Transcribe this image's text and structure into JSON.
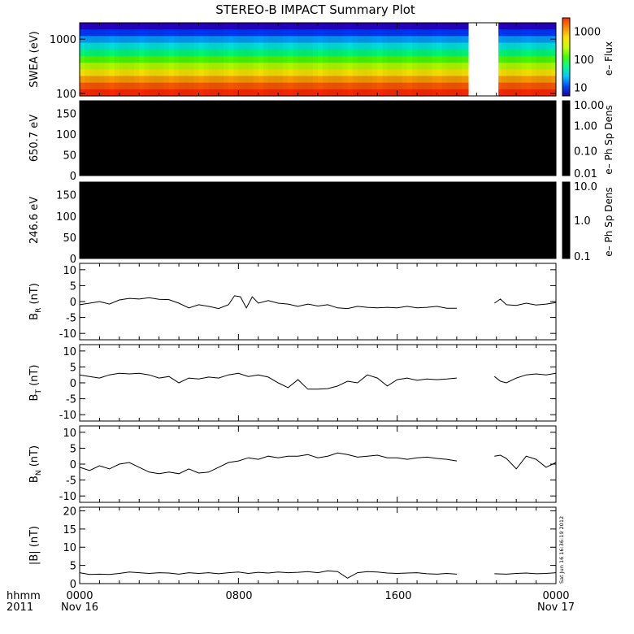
{
  "title": "STEREO-B IMPACT Summary Plot",
  "footer": {
    "left_top": "hhmm",
    "left_bottom": "2011",
    "time_labels": [
      "0000",
      "0800",
      "1600",
      "0000"
    ],
    "date_start": "Nov 16",
    "date_end": "Nov 17"
  },
  "timestamp": "Sat Jun 16 16:36:19 2012",
  "chart_data": [
    {
      "type": "heatmap",
      "name": "swea",
      "ylabel": "SWEA (eV)",
      "y_scale": "log",
      "ylim": [
        90,
        2000
      ],
      "y_ticks": [
        {
          "v": 1000,
          "label": "1000"
        },
        {
          "v": 100,
          "label": "100"
        }
      ],
      "colorbar": {
        "label": "e– Flux",
        "scale": "log",
        "range": [
          5,
          3000
        ],
        "ticks": [
          {
            "v": 1000,
            "label": "1000"
          },
          {
            "v": 100,
            "label": "100"
          },
          {
            "v": 10,
            "label": "10"
          }
        ],
        "colors": [
          "#1a00a0",
          "#0048ff",
          "#00c8ff",
          "#00ff90",
          "#40ff00",
          "#c8ff00",
          "#ffe000",
          "#ff8c00",
          "#ff3000"
        ]
      },
      "data_gap_hours": [
        19.6,
        21.1
      ],
      "rows_top_to_bottom": [
        "#2a00c8",
        "#0038ff",
        "#00a0ff",
        "#00e8e0",
        "#00ff78",
        "#50ff00",
        "#b8ff00",
        "#ffe600",
        "#ffa000",
        "#ff5a00",
        "#ff2c00"
      ]
    },
    {
      "type": "heatmap",
      "name": "pad-650",
      "ylabel": "650.7 eV",
      "ylim": [
        0,
        180
      ],
      "y_ticks": [
        0,
        50,
        100,
        150
      ],
      "fill": "#000000",
      "colorbar": {
        "label": "e– Ph Sp Dens",
        "scale": "log",
        "range": [
          0.01,
          10
        ],
        "ticks": [
          {
            "v": 10,
            "label": "10.00"
          },
          {
            "v": 1,
            "label": "1.00"
          },
          {
            "v": 0.1,
            "label": "0.10"
          },
          {
            "v": 0.01,
            "label": "0.01"
          }
        ],
        "colors": [
          "#000000"
        ]
      }
    },
    {
      "type": "heatmap",
      "name": "pad-246",
      "ylabel": "246.6 eV",
      "ylim": [
        0,
        180
      ],
      "y_ticks": [
        0,
        50,
        100,
        150
      ],
      "fill": "#000000",
      "colorbar": {
        "label": "e– Ph Sp Dens",
        "scale": "log",
        "range": [
          0.1,
          10
        ],
        "ticks": [
          {
            "v": 10,
            "label": "10.0"
          },
          {
            "v": 1,
            "label": "1.0"
          },
          {
            "v": 0.1,
            "label": "0.1"
          }
        ],
        "colors": [
          "#000000"
        ]
      }
    },
    {
      "type": "line",
      "name": "br",
      "ylabel": "B",
      "ylabel_sub": "R",
      "ylabel_unit": " (nT)",
      "ylim": [
        -12,
        12
      ],
      "y_ticks": [
        -10,
        -5,
        0,
        5,
        10
      ],
      "series": [
        {
          "x": [
            0,
            0.5,
            1,
            1.5,
            2,
            2.5,
            3,
            3.5,
            4,
            4.5,
            5,
            5.5,
            6,
            6.5,
            7,
            7.5,
            7.8,
            8.1,
            8.4,
            8.7,
            9,
            9.5,
            10,
            10.5,
            11,
            11.5,
            12,
            12.5,
            13,
            13.5,
            14,
            14.5,
            15,
            15.5,
            16,
            16.5,
            17,
            17.5,
            18,
            18.5,
            19,
            null,
            20.9,
            21.2,
            21.5,
            22,
            22.5,
            23,
            23.5,
            24
          ],
          "y": [
            -1,
            -0.5,
            0,
            -0.8,
            0.5,
            1,
            0.8,
            1.2,
            0.7,
            0.6,
            -0.5,
            -2,
            -1,
            -1.5,
            -2.2,
            -1,
            1.8,
            1.5,
            -2,
            1.5,
            -0.5,
            0.3,
            -0.5,
            -0.8,
            -1.5,
            -0.8,
            -1.4,
            -1,
            -2,
            -2.2,
            -1.5,
            -1.8,
            -2,
            -1.8,
            -2,
            -1.5,
            -2,
            -1.8,
            -1.5,
            -2.1,
            -2.1,
            null,
            -0.5,
            0.8,
            -1,
            -1.2,
            -0.5,
            -1.1,
            -0.8,
            -0.3
          ]
        }
      ]
    },
    {
      "type": "line",
      "name": "bt",
      "ylabel": "B",
      "ylabel_sub": "T",
      "ylabel_unit": " (nT)",
      "ylim": [
        -12,
        12
      ],
      "y_ticks": [
        -10,
        -5,
        0,
        5,
        10
      ],
      "series": [
        {
          "x": [
            0,
            0.5,
            1,
            1.5,
            2,
            2.5,
            3,
            3.5,
            4,
            4.5,
            5,
            5.5,
            6,
            6.5,
            7,
            7.5,
            8,
            8.5,
            9,
            9.5,
            10,
            10.5,
            11,
            11.5,
            12,
            12.5,
            13,
            13.5,
            14,
            14.5,
            15,
            15.5,
            16,
            16.5,
            17,
            17.5,
            18,
            18.5,
            19,
            null,
            20.9,
            21.2,
            21.5,
            22,
            22.5,
            23,
            23.5,
            24
          ],
          "y": [
            2.5,
            2,
            1.5,
            2.5,
            3,
            2.8,
            3,
            2.5,
            1.5,
            2,
            0,
            1.5,
            1.2,
            1.8,
            1.5,
            2.5,
            3,
            2,
            2.5,
            1.8,
            0,
            -1.5,
            1,
            -2,
            -2,
            -1.8,
            -1,
            0.5,
            0,
            2.5,
            1.5,
            -1,
            1,
            1.5,
            0.8,
            1.2,
            1,
            1.2,
            1.5,
            null,
            2,
            0.5,
            0,
            1.5,
            2.5,
            2.8,
            2.5,
            3
          ]
        }
      ]
    },
    {
      "type": "line",
      "name": "bn",
      "ylabel": "B",
      "ylabel_sub": "N",
      "ylabel_unit": " (nT)",
      "ylim": [
        -12,
        12
      ],
      "y_ticks": [
        -10,
        -5,
        0,
        5,
        10
      ],
      "series": [
        {
          "x": [
            0,
            0.5,
            1,
            1.5,
            2,
            2.5,
            3,
            3.5,
            4,
            4.5,
            5,
            5.5,
            6,
            6.5,
            7,
            7.5,
            8,
            8.5,
            9,
            9.5,
            10,
            10.5,
            11,
            11.5,
            12,
            12.5,
            13,
            13.5,
            14,
            14.5,
            15,
            15.5,
            16,
            16.5,
            17,
            17.5,
            18,
            18.5,
            19,
            null,
            20.9,
            21.2,
            21.5,
            22,
            22.5,
            23,
            23.5,
            24
          ],
          "y": [
            -1,
            -2,
            -0.5,
            -1.5,
            0,
            0.5,
            -1,
            -2.5,
            -3,
            -2.5,
            -3,
            -1.5,
            -2.8,
            -2.5,
            -1,
            0.5,
            1,
            2,
            1.5,
            2.5,
            2,
            2.5,
            2.5,
            3,
            2,
            2.5,
            3.5,
            3,
            2.2,
            2.5,
            2.8,
            2,
            2,
            1.5,
            2,
            2.2,
            1.8,
            1.5,
            1,
            null,
            2.5,
            2.8,
            1.8,
            -1.5,
            2.5,
            1.5,
            -1,
            0.5
          ]
        }
      ]
    },
    {
      "type": "line",
      "name": "bmag",
      "ylabel": "|B| (nT)",
      "ylim": [
        0,
        21
      ],
      "y_ticks": [
        0,
        5,
        10,
        15,
        20
      ],
      "series": [
        {
          "x": [
            0,
            0.5,
            1,
            1.5,
            2,
            2.5,
            3,
            3.5,
            4,
            4.5,
            5,
            5.5,
            6,
            6.5,
            7,
            7.5,
            8,
            8.5,
            9,
            9.5,
            10,
            10.5,
            11,
            11.5,
            12,
            12.5,
            13,
            13.5,
            14,
            14.5,
            15,
            15.5,
            16,
            16.5,
            17,
            17.5,
            18,
            18.5,
            19,
            null,
            20.9,
            21.5,
            22,
            22.5,
            23,
            23.5,
            24
          ],
          "y": [
            3,
            2.5,
            2.6,
            2.5,
            2.8,
            3.2,
            3,
            2.8,
            3,
            2.9,
            2.6,
            3,
            2.8,
            3,
            2.7,
            3,
            3.2,
            2.8,
            3.1,
            2.9,
            3.2,
            3,
            3.1,
            3.3,
            3,
            3.5,
            3.3,
            1.5,
            3,
            3.3,
            3.2,
            2.9,
            2.8,
            2.9,
            3,
            2.7,
            2.6,
            2.8,
            2.6,
            null,
            2.7,
            2.6,
            2.8,
            2.9,
            2.7,
            2.8,
            3
          ]
        }
      ]
    }
  ]
}
